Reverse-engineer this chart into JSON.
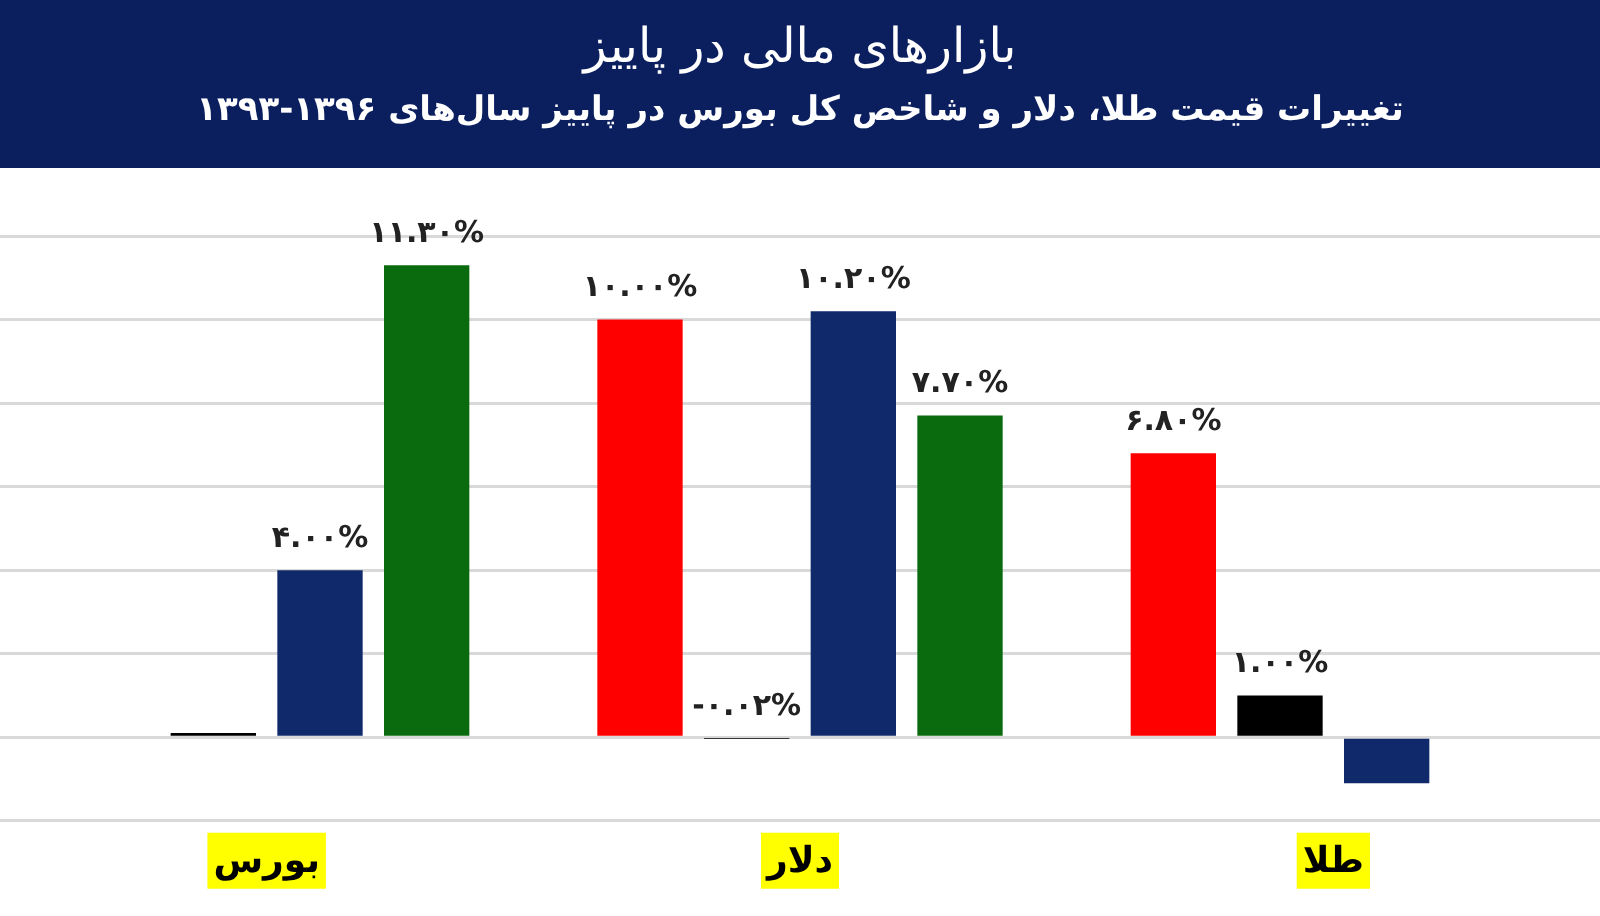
{
  "chart_data": {
    "type": "bar",
    "title": "بازارهای مالی در پاییز",
    "subtitle": "تغییرات قیمت طلا، دلار و شاخص کل بورس در پاییز سال‌های ۱۳۹۶-۱۳۹۳",
    "categories": [
      "بورس",
      "دلار",
      "طلا"
    ],
    "series": [
      {
        "color": "#ff0000",
        "values": [
          null,
          10.0,
          6.8
        ],
        "value_labels": [
          null,
          "۱۰.۰۰%",
          "۶.۸۰%"
        ]
      },
      {
        "color": "#000000",
        "values": [
          0.1,
          -0.02,
          1.0
        ],
        "value_labels": [
          null,
          "-۰.۰۲%",
          "۱.۰۰%"
        ]
      },
      {
        "color": "#10296b",
        "values": [
          4.0,
          10.2,
          -1.1
        ],
        "value_labels": [
          "۴.۰۰%",
          "۱۰.۲۰%",
          null
        ]
      },
      {
        "color": "#0a6b0e",
        "values": [
          11.3,
          7.7,
          null
        ],
        "value_labels": [
          "۱۱.۳۰%",
          "۷.۷۰%",
          null
        ]
      }
    ],
    "ylim": [
      -2,
      12
    ],
    "yticks": [
      {
        "value": -2,
        "label": null
      },
      {
        "value": 0,
        "label": null
      },
      {
        "value": 2,
        "label": null
      },
      {
        "value": 4,
        "label": null
      },
      {
        "value": 6,
        "label": null
      },
      {
        "value": 8,
        "label": null
      },
      {
        "value": 10,
        "label": null
      },
      {
        "value": 12,
        "label": null
      }
    ],
    "grid": "y",
    "tick_labels": "x"
  }
}
